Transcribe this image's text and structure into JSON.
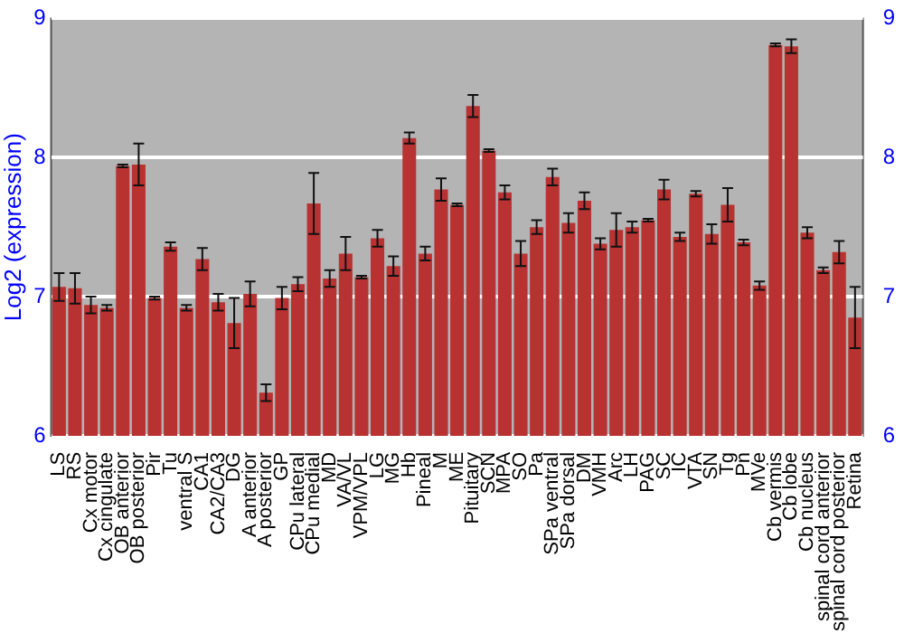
{
  "chart_data": {
    "type": "bar",
    "ylabel": "Log2 (expression)",
    "categories": [
      "LS",
      "RS",
      "Cx motor",
      "Cx cingulate",
      "OB anterior",
      "OB posterior",
      "Pir",
      "Tu",
      "ventral S",
      "CA1",
      "CA2/CA3",
      "DG",
      "A anterior",
      "A posterior",
      "GP",
      "CPu lateral",
      "CPu medial",
      "MD",
      "VA/VL",
      "VPM/VPL",
      "LG",
      "MG",
      "Hb",
      "Pineal",
      "M",
      "ME",
      "Pituitary",
      "SCN",
      "MPA",
      "SO",
      "Pa",
      "SPa ventral",
      "SPa dorsal",
      "DM",
      "VMH",
      "Arc",
      "LH",
      "PAG",
      "SC",
      "IC",
      "VTA",
      "SN",
      "Tg",
      "Pn",
      "MVe",
      "Cb vermis",
      "Cb lobe",
      "Cb nucleus",
      "spinal cord anterior",
      "spinal cord posterior",
      "Retina"
    ],
    "values": [
      7.07,
      7.06,
      6.94,
      6.92,
      7.94,
      7.95,
      6.99,
      7.36,
      6.92,
      7.27,
      6.96,
      6.81,
      7.02,
      6.31,
      6.99,
      7.09,
      7.67,
      7.13,
      7.31,
      7.14,
      7.42,
      7.22,
      8.14,
      7.31,
      7.77,
      7.66,
      8.37,
      8.05,
      7.75,
      7.31,
      7.5,
      7.86,
      7.53,
      7.69,
      7.38,
      7.48,
      7.5,
      7.55,
      7.77,
      7.43,
      7.74,
      7.45,
      7.66,
      7.39,
      7.08,
      8.81,
      8.8,
      7.46,
      7.19,
      7.32,
      6.85
    ],
    "errors": [
      0.1,
      0.11,
      0.06,
      0.02,
      0.01,
      0.15,
      0.01,
      0.03,
      0.02,
      0.08,
      0.06,
      0.18,
      0.09,
      0.06,
      0.08,
      0.05,
      0.22,
      0.06,
      0.12,
      0.01,
      0.06,
      0.07,
      0.04,
      0.05,
      0.08,
      0.01,
      0.08,
      0.01,
      0.05,
      0.09,
      0.05,
      0.06,
      0.07,
      0.06,
      0.04,
      0.12,
      0.04,
      0.01,
      0.07,
      0.03,
      0.02,
      0.07,
      0.12,
      0.02,
      0.03,
      0.01,
      0.05,
      0.04,
      0.02,
      0.08,
      0.22
    ],
    "color": "#b83232",
    "ylim": [
      6,
      9
    ],
    "yticks": [
      6,
      7,
      8,
      9
    ],
    "y2lim": [
      6,
      9
    ],
    "y2ticks": [
      6,
      7,
      8,
      9
    ],
    "grid": "y",
    "legend": false
  }
}
